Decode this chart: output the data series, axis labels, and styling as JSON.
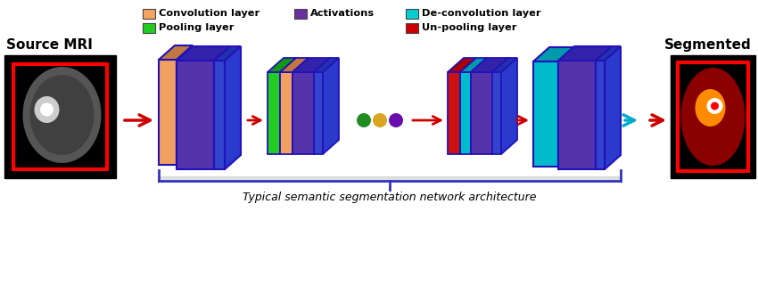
{
  "background_color": "#ffffff",
  "title": "Typical semantic segmentation network architecture",
  "source_label": "Source MRI",
  "segmented_label": "Segmented",
  "legend": [
    {
      "label": "Convolution layer",
      "color": "#F4A460",
      "row": 0,
      "col": 0
    },
    {
      "label": "Activations",
      "color": "#6B2FA0",
      "row": 0,
      "col": 1
    },
    {
      "label": "De-convolution layer",
      "color": "#00CED1",
      "row": 0,
      "col": 2
    },
    {
      "label": "Pooling layer",
      "color": "#22CC22",
      "row": 1,
      "col": 0
    },
    {
      "label": "Un-pooling layer",
      "color": "#CC0000",
      "row": 1,
      "col": 2
    }
  ],
  "dot_colors": [
    "#228B22",
    "#DAA520",
    "#6A0DAD"
  ],
  "bracket_color": "#3333BB",
  "arrow_red": "#CC0000",
  "arrow_teal": "#00AACC"
}
